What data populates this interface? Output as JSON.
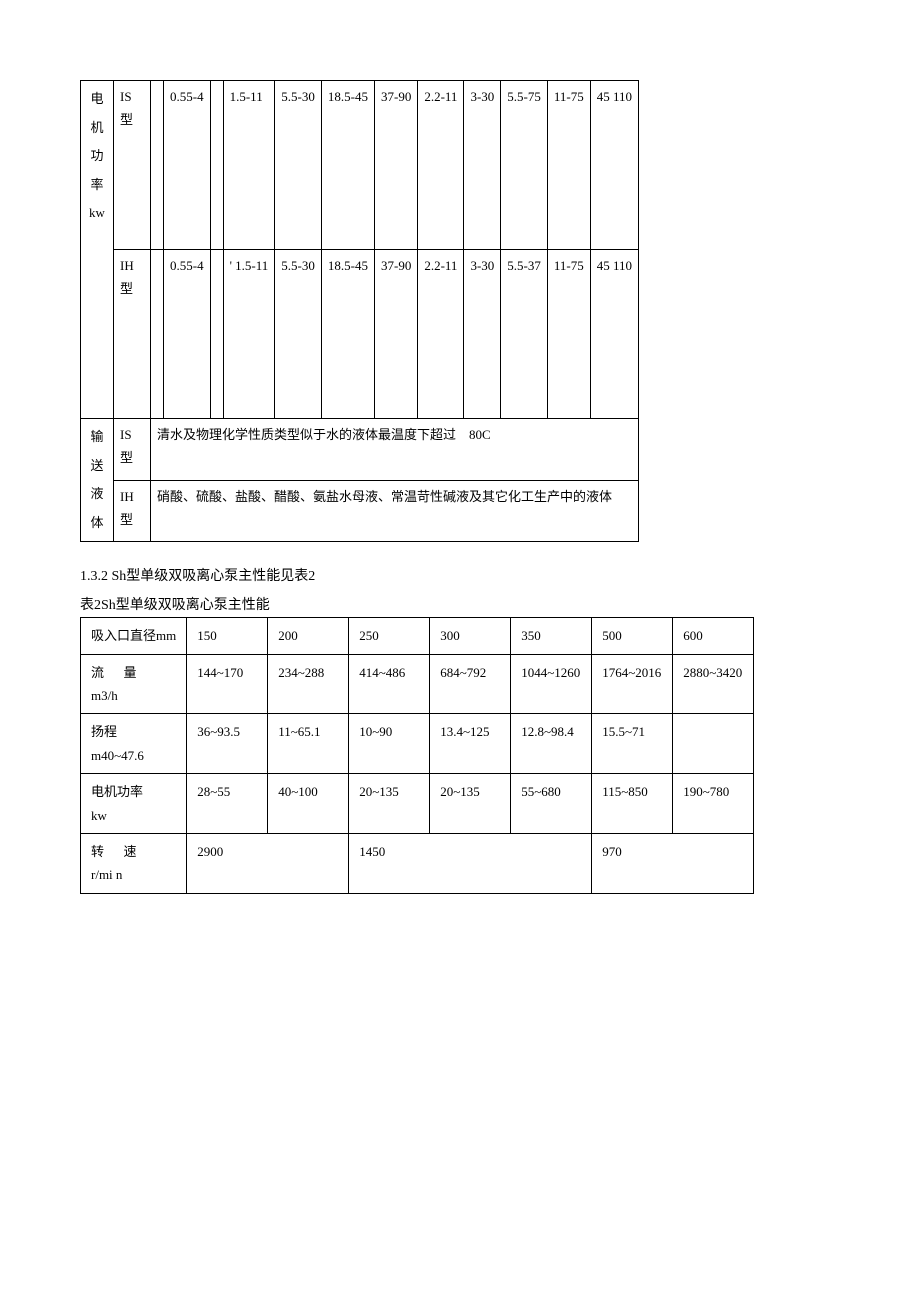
{
  "table1": {
    "row_labels": {
      "power": "电 机 功 率 kw",
      "liquid": "输 送 液 体"
    },
    "types": {
      "is": "IS 型",
      "ih": "IH 型"
    },
    "power_is": [
      "",
      "0.55-4",
      "",
      "1.5-11",
      "5.5-30",
      "18.5-45",
      "37-90",
      "2.2-11",
      "3-30",
      "5.5-75",
      "11-75",
      "45  110"
    ],
    "power_ih": [
      "",
      "0.55-4",
      "",
      "' 1.5-11",
      "5.5-30",
      "18.5-45",
      "37-90",
      "2.2-11",
      "3-30",
      "5.5-37",
      "11-75",
      "45  110"
    ],
    "liquid_is": "清水及物理化学性质类型似于水的液体最温度下超过　80C",
    "liquid_ih": "硝酸、硫酸、盐酸、醋酸、氨盐水母液、常温苛性碱液及其它化工生产中的液体"
  },
  "section": {
    "heading": "1.3.2 Sh型单级双吸离心泵主性能见表2",
    "caption": "表2Sh型单级双吸离心泵主性能"
  },
  "table2": {
    "rows": {
      "inlet": {
        "label": "吸入口直径mm",
        "cells": [
          "150",
          "200",
          "250",
          "300",
          "350",
          "500",
          "600"
        ]
      },
      "flow": {
        "label_a": "流",
        "label_b": "量",
        "unit": "m3/h",
        "cells": [
          "144~170",
          "234~288",
          "414~486",
          "684~792",
          "1044~1260",
          "1764~2016",
          "2880~3420"
        ]
      },
      "head": {
        "label": "扬程",
        "unit": "m40~47.6",
        "cells": [
          "36~93.5",
          "11~65.1",
          "10~90",
          "13.4~125",
          "12.8~98.4",
          "15.5~71",
          ""
        ]
      },
      "power": {
        "label": "电机功率",
        "unit": "kw",
        "cells": [
          "28~55",
          "40~100",
          "20~135",
          "20~135",
          "55~680",
          "115~850",
          "190~780"
        ]
      },
      "speed": {
        "label_a": "转",
        "label_b": "速",
        "unit": "r/mi n",
        "cells": [
          "2900",
          "1450",
          "970"
        ]
      }
    }
  }
}
